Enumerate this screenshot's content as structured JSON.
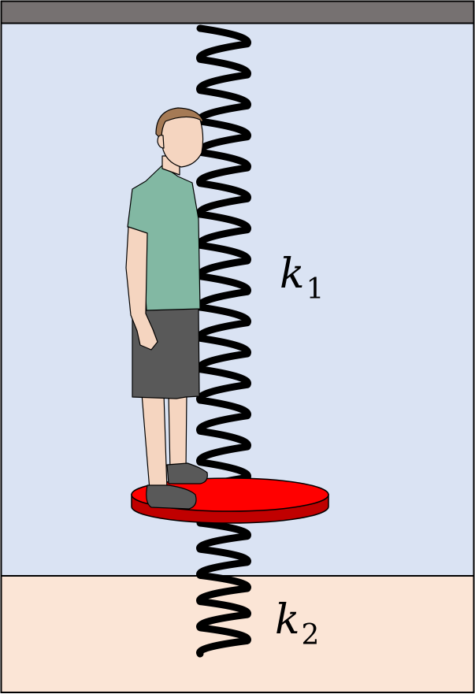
{
  "diagram": {
    "labels": {
      "upper_spring": {
        "symbol": "k",
        "subscript": "1"
      },
      "lower_spring": {
        "symbol": "k",
        "subscript": "2"
      }
    },
    "colors": {
      "ceiling": "#767171",
      "room": "#dae3f3",
      "floor": "#fbe5d6",
      "outline": "#000000",
      "spring": "#000000",
      "platform_top": "#ff0000",
      "platform_side": "#c00000",
      "shirt": "#82b8a3",
      "shorts": "#595959",
      "shoes": "#595959",
      "skin": "#f5d5c0",
      "hair": "#a57a55"
    },
    "icons": {
      "person": "standing-person-icon",
      "spring": "coil-spring-icon",
      "platform": "disc-platform-icon"
    }
  }
}
